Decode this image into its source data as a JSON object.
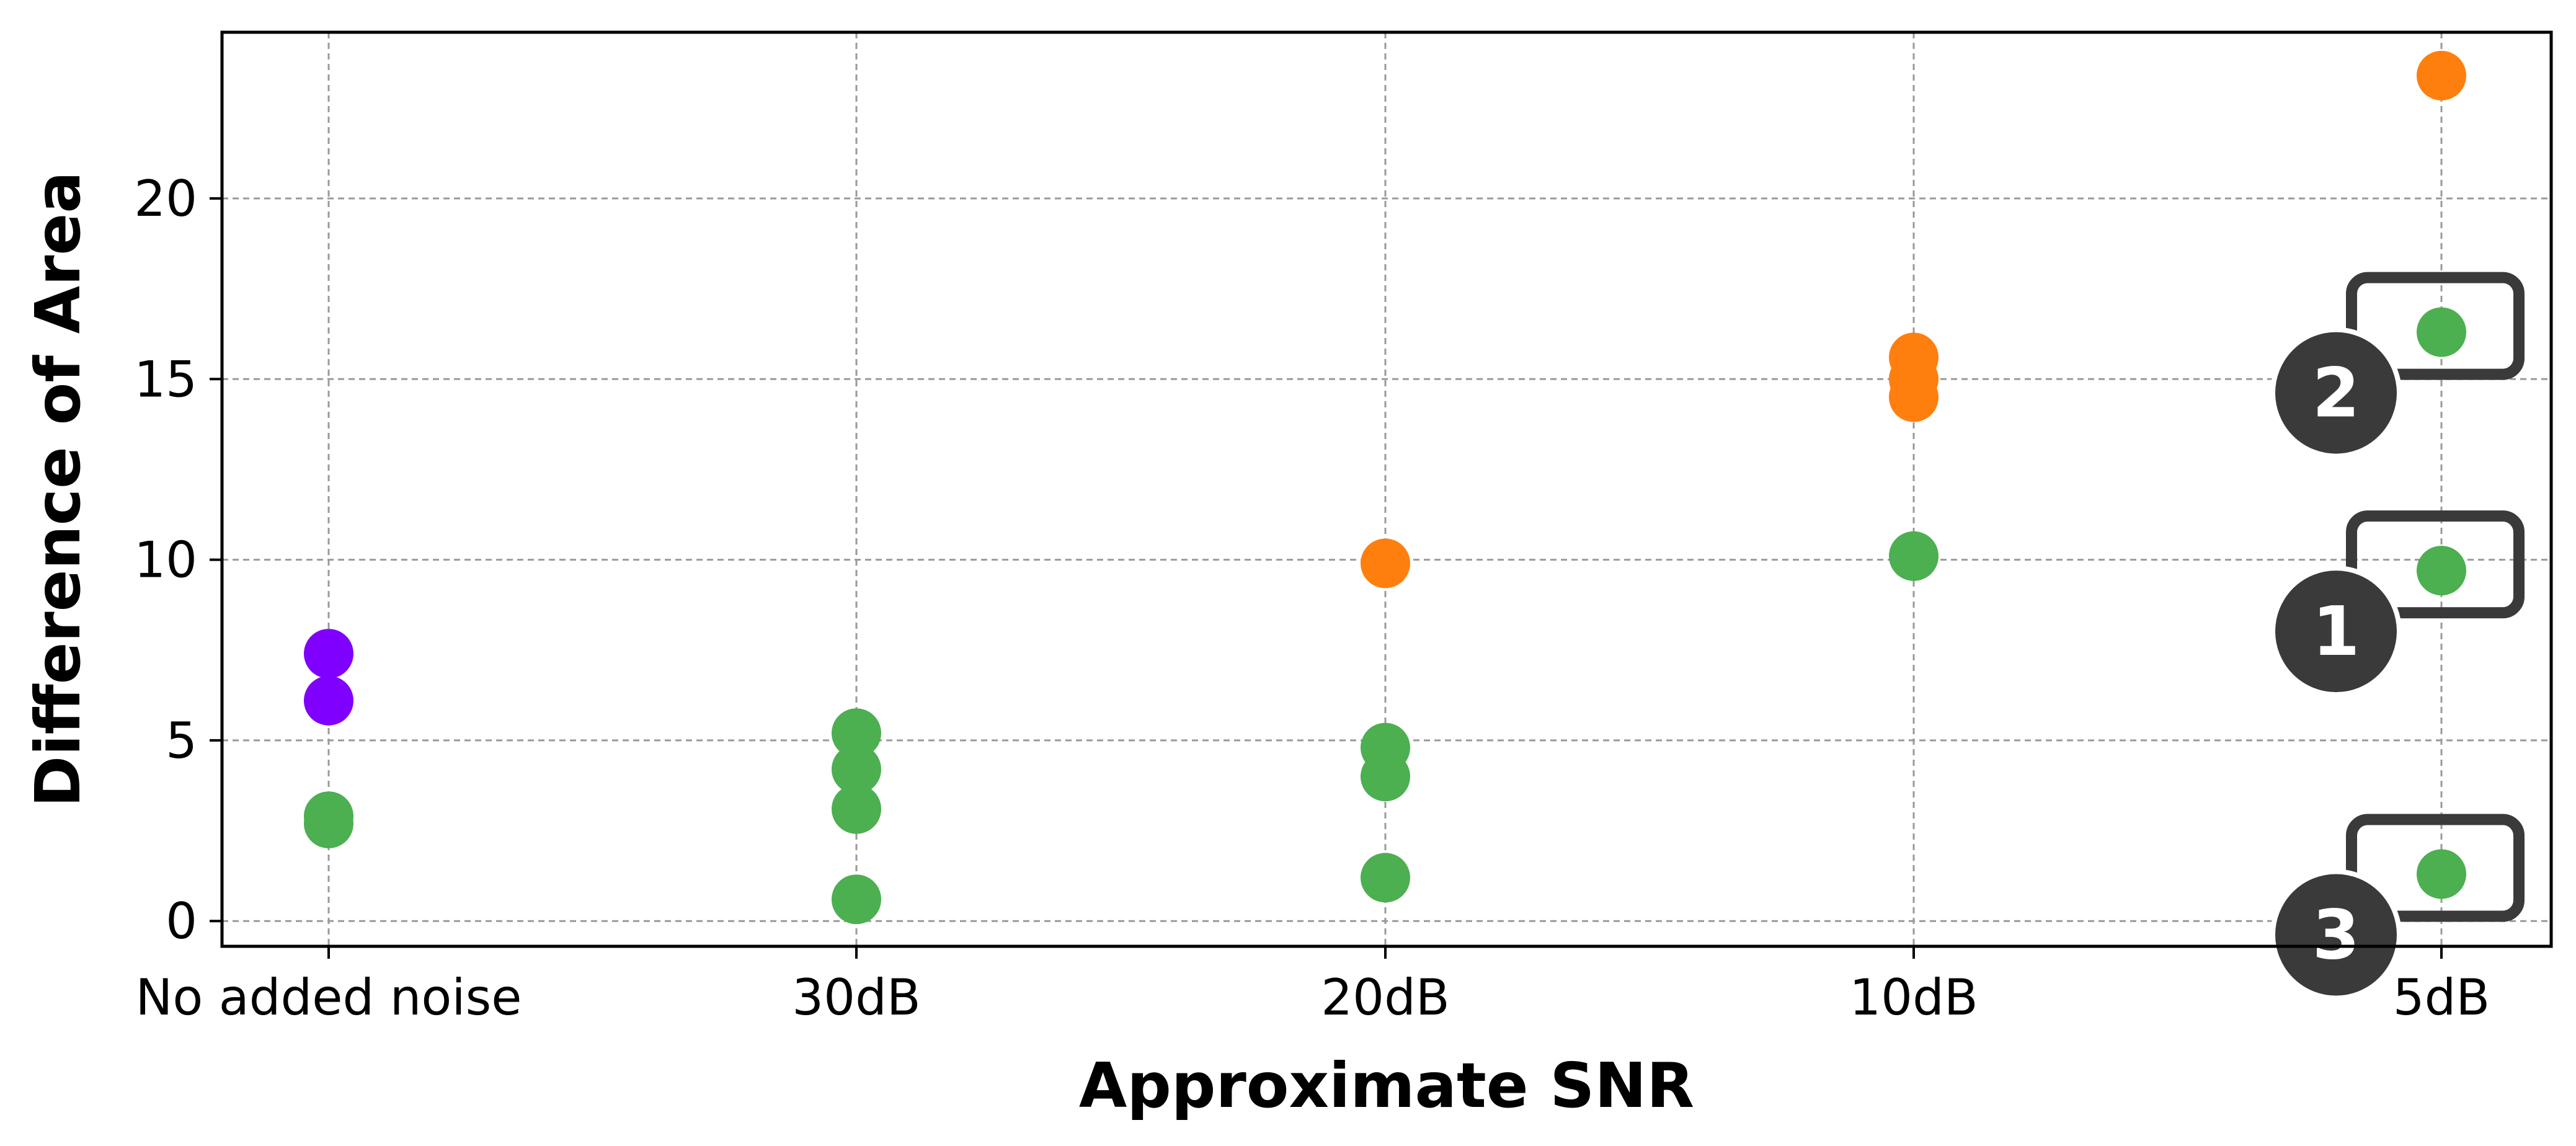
{
  "chart_data": {
    "type": "scatter",
    "title": "",
    "xlabel": "Approximate SNR",
    "ylabel": "Difference of Area",
    "categories": [
      "No added noise",
      "30dB",
      "20dB",
      "10dB",
      "5dB"
    ],
    "ylim": [
      -0.7,
      24.6
    ],
    "yticks": [
      0,
      5,
      10,
      15,
      20
    ],
    "grid": true,
    "point_colors": {
      "purple": "#8000ff",
      "orange": "#ff7f0e",
      "green": "#4caf50"
    },
    "points": [
      {
        "category": "No added noise",
        "y": 7.4,
        "color": "purple"
      },
      {
        "category": "No added noise",
        "y": 6.1,
        "color": "purple"
      },
      {
        "category": "No added noise",
        "y": 2.9,
        "color": "green"
      },
      {
        "category": "No added noise",
        "y": 2.7,
        "color": "green"
      },
      {
        "category": "30dB",
        "y": 5.2,
        "color": "green"
      },
      {
        "category": "30dB",
        "y": 4.2,
        "color": "green"
      },
      {
        "category": "30dB",
        "y": 3.1,
        "color": "green"
      },
      {
        "category": "30dB",
        "y": 0.6,
        "color": "green"
      },
      {
        "category": "20dB",
        "y": 9.9,
        "color": "orange"
      },
      {
        "category": "20dB",
        "y": 4.8,
        "color": "green"
      },
      {
        "category": "20dB",
        "y": 4.0,
        "color": "green"
      },
      {
        "category": "20dB",
        "y": 1.2,
        "color": "green"
      },
      {
        "category": "10dB",
        "y": 15.6,
        "color": "orange"
      },
      {
        "category": "10dB",
        "y": 15.0,
        "color": "orange"
      },
      {
        "category": "10dB",
        "y": 14.5,
        "color": "orange"
      },
      {
        "category": "10dB",
        "y": 10.1,
        "color": "green"
      },
      {
        "category": "5dB",
        "y": 23.4,
        "color": "orange"
      },
      {
        "category": "5dB",
        "y": 16.3,
        "color": "green"
      },
      {
        "category": "5dB",
        "y": 9.7,
        "color": "green"
      },
      {
        "category": "5dB",
        "y": 1.3,
        "color": "green"
      }
    ],
    "annotations": [
      {
        "label": "1",
        "category": "5dB",
        "y": 9.7
      },
      {
        "label": "2",
        "category": "5dB",
        "y": 16.3
      },
      {
        "label": "3",
        "category": "5dB",
        "y": 1.3
      }
    ]
  }
}
